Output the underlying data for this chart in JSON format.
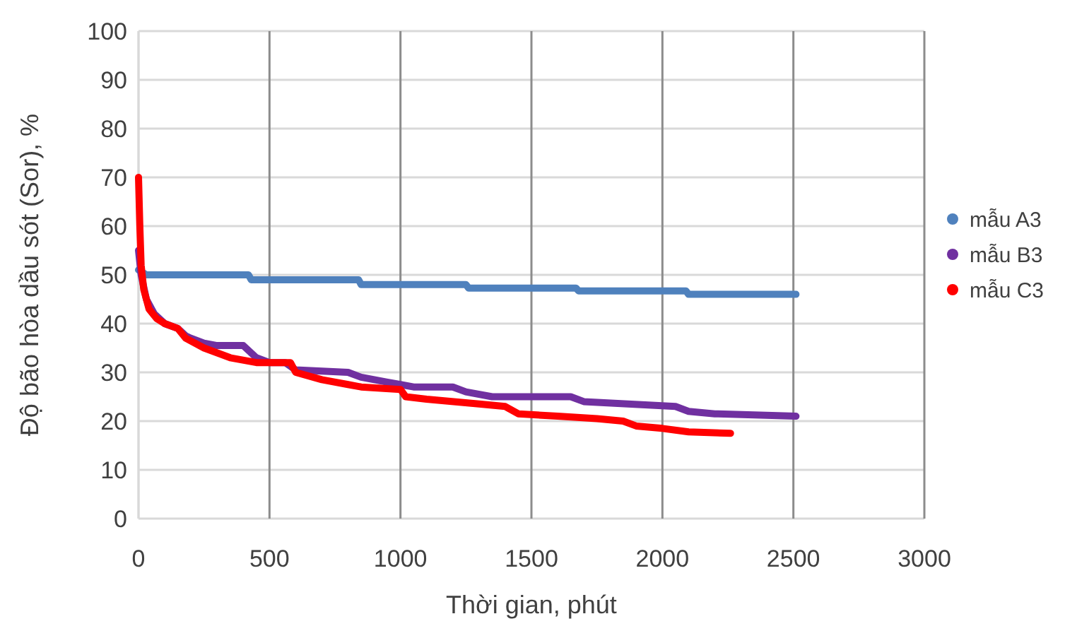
{
  "chart_data": {
    "type": "line",
    "xlabel": "Thời gian, phút",
    "ylabel": "Độ bão hòa dầu sót (Sor), %",
    "xlim": [
      0,
      3000
    ],
    "xticks": [
      0,
      500,
      1000,
      1500,
      2000,
      2500,
      3000
    ],
    "ylim": [
      0,
      100
    ],
    "yticks": [
      0,
      10,
      20,
      30,
      40,
      50,
      60,
      70,
      80,
      90,
      100
    ],
    "grid": true,
    "legend": "right",
    "line_style": "solid",
    "series": [
      {
        "name": "mẫu A3",
        "color": "#4f81bd",
        "x": [
          0,
          30,
          420,
          430,
          840,
          850,
          1250,
          1260,
          1670,
          1680,
          2090,
          2100,
          2510
        ],
        "values": [
          51,
          50,
          50,
          49,
          49,
          48,
          48,
          47.3,
          47.3,
          46.7,
          46.7,
          46,
          46
        ]
      },
      {
        "name": "mẫu B3",
        "color": "#7030a0",
        "x": [
          0,
          10,
          30,
          60,
          100,
          150,
          180,
          200,
          250,
          300,
          400,
          450,
          500,
          560,
          600,
          800,
          850,
          950,
          1000,
          1050,
          1200,
          1250,
          1350,
          1650,
          1700,
          2050,
          2100,
          2200,
          2510
        ],
        "values": [
          55,
          50,
          45,
          42,
          40,
          39,
          37.5,
          37,
          36,
          35.5,
          35.5,
          33,
          32,
          32,
          30.5,
          30,
          29,
          28,
          27.5,
          27,
          27,
          26,
          25,
          25,
          24,
          23,
          22,
          21.5,
          21
        ]
      },
      {
        "name": "mẫu C3",
        "color": "#ff0000",
        "x": [
          0,
          5,
          10,
          20,
          40,
          70,
          100,
          150,
          180,
          250,
          350,
          450,
          580,
          600,
          700,
          800,
          850,
          1000,
          1020,
          1100,
          1300,
          1400,
          1450,
          1600,
          1750,
          1850,
          1900,
          2000,
          2100,
          2260
        ],
        "values": [
          70,
          60,
          52,
          47,
          43,
          41,
          40,
          39,
          37,
          35,
          33,
          32,
          32,
          30,
          28.5,
          27.5,
          27,
          26.5,
          25,
          24.5,
          23.5,
          23,
          21.5,
          21,
          20.5,
          20,
          19,
          18.5,
          17.8,
          17.5
        ]
      }
    ]
  }
}
